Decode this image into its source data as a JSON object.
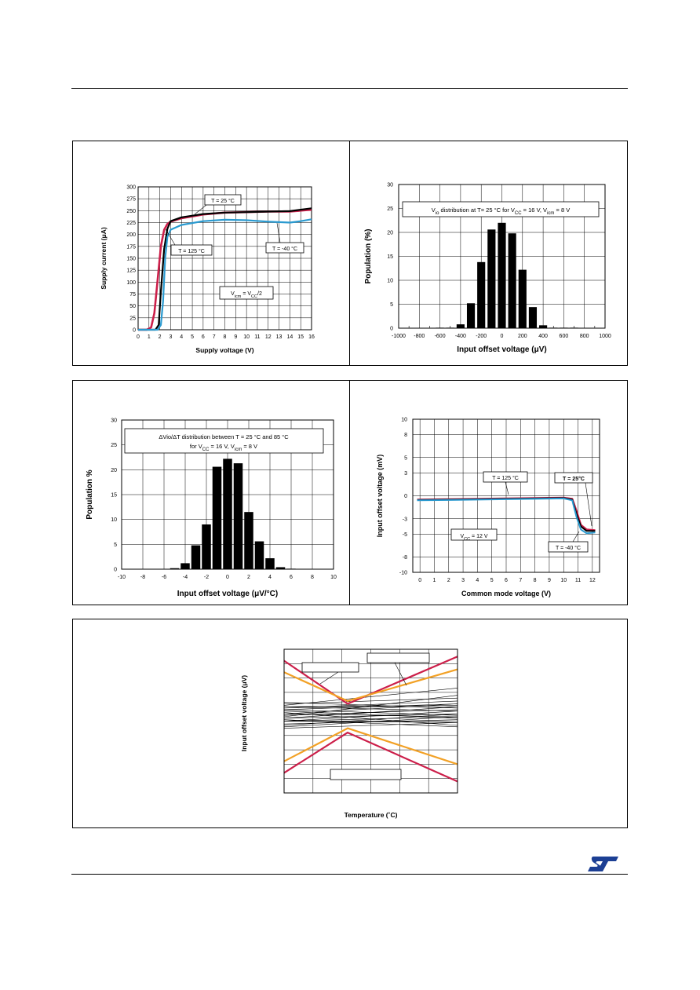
{
  "page": {
    "logo_text": "ST"
  },
  "colors": {
    "red": "#cc1f4a",
    "blue": "#2a9ad0",
    "black": "#000000",
    "orange": "#f2a126",
    "grid": "#000000"
  },
  "chart_data": [
    {
      "id": "supply-current",
      "type": "line",
      "xlabel": "Supply voltage (V)",
      "ylabel": "Supply current (μA)",
      "xlim": [
        0,
        16
      ],
      "ylim": [
        0,
        300
      ],
      "xticks": [
        0,
        1,
        2,
        3,
        4,
        5,
        6,
        7,
        8,
        9,
        10,
        11,
        12,
        13,
        14,
        15,
        16
      ],
      "yticks": [
        0,
        25,
        50,
        75,
        100,
        125,
        150,
        175,
        200,
        225,
        250,
        275,
        300
      ],
      "grid": true,
      "annotations": [
        "T = 25 °C",
        "T = 125 °C",
        "T = -40 °C",
        "Vicm = VCC/2"
      ],
      "series": [
        {
          "name": "T = 125 °C",
          "color": "red",
          "x": [
            0,
            0.8,
            1.2,
            1.5,
            1.8,
            2.1,
            2.4,
            2.7,
            3,
            4,
            6,
            8,
            10,
            12,
            14,
            16
          ],
          "y": [
            0,
            0,
            5,
            35,
            105,
            175,
            210,
            222,
            227,
            234,
            242,
            246,
            247,
            248,
            248,
            252
          ]
        },
        {
          "name": "T = 25 °C",
          "color": "black",
          "x": [
            0,
            1.6,
            1.9,
            2.1,
            2.4,
            2.7,
            3,
            4,
            6,
            8,
            10,
            12,
            14,
            16
          ],
          "y": [
            0,
            0,
            10,
            80,
            170,
            212,
            228,
            236,
            243,
            246,
            247,
            248,
            249,
            255
          ]
        },
        {
          "name": "T = -40 °C",
          "color": "blue",
          "x": [
            0,
            1.8,
            2.1,
            2.3,
            2.5,
            2.7,
            3,
            4,
            6,
            8,
            10,
            12,
            14,
            15,
            16
          ],
          "y": [
            0,
            0,
            10,
            60,
            150,
            195,
            210,
            220,
            228,
            231,
            230,
            227,
            225,
            228,
            232
          ]
        }
      ]
    },
    {
      "id": "vio-distribution",
      "type": "bar",
      "xlabel": "Input offset voltage (μV)",
      "ylabel": "Population (%)",
      "xlim": [
        -1000,
        1000
      ],
      "ylim": [
        0,
        30
      ],
      "xticks": [
        -1000,
        -800,
        -600,
        -400,
        -200,
        0,
        200,
        400,
        600,
        800,
        1000
      ],
      "yticks": [
        0,
        5,
        10,
        15,
        20,
        25,
        30
      ],
      "grid": true,
      "annotation": "Vio distribution at T= 25 °C for VCC = 16 V, Vicm = 8 V",
      "bin_width": 100,
      "categories": [
        -600,
        -500,
        -400,
        -300,
        -200,
        -100,
        0,
        100,
        200,
        300,
        400,
        500,
        600,
        700,
        800
      ],
      "values": [
        0.1,
        0.1,
        0.8,
        5.2,
        13.8,
        20.6,
        22.0,
        19.8,
        12.2,
        4.4,
        0.6,
        0.1,
        0.1,
        0.1,
        0.0
      ]
    },
    {
      "id": "dvio-distribution",
      "type": "bar",
      "xlabel": "Input offset voltage (μV/°C)",
      "ylabel": "Population %",
      "xlim": [
        -10,
        10
      ],
      "ylim": [
        0,
        30
      ],
      "xticks": [
        -10,
        -8,
        -6,
        -4,
        -2,
        0,
        2,
        4,
        6,
        8,
        10
      ],
      "yticks": [
        0,
        5,
        10,
        15,
        20,
        25,
        30
      ],
      "grid": true,
      "annotation_line1": "ΔVio/ΔT distribution between T = 25 °C and 85 °C",
      "annotation_line2": "for VCC = 16 V, Vicm = 8 V",
      "bin_width": 1,
      "categories": [
        -5,
        -4,
        -3,
        -2,
        -1,
        0,
        1,
        2,
        3,
        4,
        5,
        6
      ],
      "values": [
        0.2,
        1.2,
        4.8,
        9.0,
        20.6,
        22.2,
        21.3,
        11.5,
        5.6,
        2.2,
        0.4,
        0.1
      ]
    },
    {
      "id": "vio-vs-vcm",
      "type": "line",
      "xlabel": "Common mode voltage (V)",
      "ylabel": "Input offset voltage (mV)",
      "xlim": [
        -0.5,
        12.5
      ],
      "ylim": [
        -10,
        10
      ],
      "xticks": [
        0,
        1,
        2,
        3,
        4,
        5,
        6,
        7,
        8,
        9,
        10,
        11,
        12
      ],
      "yticks": [
        -10,
        -8,
        -5,
        -3,
        0,
        3,
        5,
        8,
        10
      ],
      "grid": true,
      "annotations": [
        "T = 125 °C",
        "T = 25°C",
        "T = -40 °C",
        "VCC = 12 V"
      ],
      "series": [
        {
          "name": "T = 125 °C",
          "color": "red",
          "x": [
            -0.2,
            2,
            4,
            6,
            8,
            10,
            10.6,
            10.9,
            11.2,
            11.6,
            12.2
          ],
          "y": [
            -0.5,
            -0.45,
            -0.4,
            -0.35,
            -0.3,
            -0.25,
            -0.4,
            -2.0,
            -3.8,
            -4.4,
            -4.5
          ]
        },
        {
          "name": "T = 25°C",
          "color": "black",
          "x": [
            -0.2,
            2,
            4,
            6,
            8,
            10,
            10.6,
            10.9,
            11.2,
            11.6,
            12.2
          ],
          "y": [
            -0.55,
            -0.5,
            -0.45,
            -0.4,
            -0.35,
            -0.3,
            -0.5,
            -2.4,
            -4.0,
            -4.6,
            -4.6
          ]
        },
        {
          "name": "T = -40 °C",
          "color": "blue",
          "x": [
            -0.2,
            2,
            4,
            6,
            8,
            10,
            10.6,
            10.9,
            11.2,
            11.6,
            12.2
          ],
          "y": [
            -0.6,
            -0.55,
            -0.5,
            -0.45,
            -0.4,
            -0.35,
            -0.6,
            -2.8,
            -4.4,
            -4.9,
            -4.8
          ]
        }
      ]
    },
    {
      "id": "vio-vs-temp",
      "type": "line",
      "xlabel": "Temperature (˚C)",
      "ylabel": "Input offset voltage (μV)",
      "xlim": [
        0,
        6
      ],
      "ylim": [
        0,
        1
      ],
      "grid": true,
      "labels_blank": 3,
      "series": [
        {
          "name": "",
          "color": "red",
          "x": [
            0,
            2.2,
            6
          ],
          "y": [
            0.92,
            0.62,
            0.95
          ]
        },
        {
          "name": "",
          "color": "red",
          "x": [
            0,
            2.2,
            6
          ],
          "y": [
            0.14,
            0.42,
            0.08
          ]
        },
        {
          "name": "",
          "color": "orange",
          "x": [
            0,
            2.2,
            6
          ],
          "y": [
            0.84,
            0.64,
            0.86
          ]
        },
        {
          "name": "",
          "color": "orange",
          "x": [
            0,
            2.2,
            6
          ],
          "y": [
            0.22,
            0.45,
            0.2
          ]
        }
      ],
      "bundle": [
        [
          0.55,
          0.53
        ],
        [
          0.6,
          0.57
        ],
        [
          0.5,
          0.53
        ],
        [
          0.58,
          0.62
        ],
        [
          0.52,
          0.55
        ],
        [
          0.48,
          0.51
        ],
        [
          0.62,
          0.66
        ],
        [
          0.45,
          0.49
        ],
        [
          0.57,
          0.52
        ],
        [
          0.54,
          0.58
        ],
        [
          0.5,
          0.49
        ],
        [
          0.63,
          0.59
        ],
        [
          0.47,
          0.55
        ],
        [
          0.59,
          0.64
        ],
        [
          0.52,
          0.6
        ],
        [
          0.56,
          0.47
        ],
        [
          0.61,
          0.73
        ],
        [
          0.5,
          0.57
        ],
        [
          0.55,
          0.62
        ],
        [
          0.58,
          0.54
        ],
        [
          0.51,
          0.46
        ],
        [
          0.53,
          0.68
        ],
        [
          0.6,
          0.61
        ],
        [
          0.46,
          0.53
        ]
      ]
    }
  ]
}
